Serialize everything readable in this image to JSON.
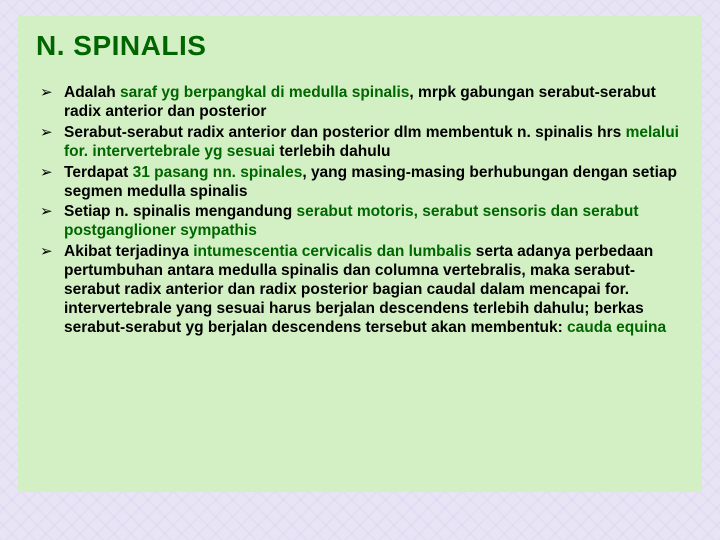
{
  "slide": {
    "title": "N. SPINALIS",
    "background_color": "#d3f0c4",
    "page_background_color": "#e8e4f5",
    "title_color": "#006600",
    "highlight_color": "#006600",
    "body_text_color": "#000000",
    "title_fontsize_pt": 21,
    "body_fontsize_pt": 12,
    "bullets": [
      {
        "pre": "Adalah ",
        "hl1": "saraf yg berpangkal di medulla spinalis",
        "post1": ", mrpk gabungan serabut-serabut radix anterior dan posterior"
      },
      {
        "pre": "Serabut-serabut radix anterior dan posterior dlm membentuk n. spinalis hrs ",
        "hl1": "melalui for. intervertebrale yg sesuai",
        "post1": " terlebih dahulu"
      },
      {
        "pre": "Terdapat ",
        "hl1": "31 pasang nn. spinales",
        "post1": ", yang masing-masing berhubungan dengan  setiap segmen medulla spinalis"
      },
      {
        "pre": "Setiap n. spinalis mengandung ",
        "hl1": "serabut motoris, serabut sensoris dan  serabut postganglioner sympathis",
        "post1": ""
      },
      {
        "pre": "Akibat terjadinya ",
        "hl1": "intumescentia cervicalis dan lumbalis",
        "post1": " serta adanya  perbedaan pertumbuhan antara medulla spinalis dan columna vertebralis, maka serabut-serabut radix anterior dan radix posterior bagian caudal dalam mencapai for. intervertebrale yang sesuai harus berjalan descendens terlebih dahulu; berkas serabut-serabut yg berjalan descendens tersebut akan membentuk: ",
        "hl2": "cauda equina"
      }
    ]
  }
}
